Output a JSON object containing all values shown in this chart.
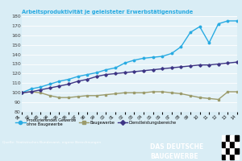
{
  "title": "Arbeitsproduktivität je geleisteter Erwerbstätigenstunde",
  "years": [
    1991,
    1992,
    1993,
    1994,
    1995,
    1996,
    1997,
    1998,
    1999,
    2000,
    2001,
    2002,
    2003,
    2004,
    2005,
    2006,
    2007,
    2008,
    2009,
    2010,
    2011,
    2012,
    2013,
    2014
  ],
  "produzierendes": [
    100,
    104,
    106,
    109,
    112,
    114,
    117,
    119,
    121,
    124,
    126,
    131,
    134,
    136,
    137,
    138,
    141,
    148,
    163,
    169,
    152,
    172,
    175,
    175
  ],
  "baugewerbe": [
    100,
    101,
    100,
    97,
    95,
    95,
    96,
    97,
    97,
    98,
    99,
    100,
    100,
    100,
    101,
    101,
    100,
    99,
    97,
    95,
    94,
    93,
    101,
    101
  ],
  "dienstleistung": [
    100,
    101,
    103,
    105,
    107,
    109,
    112,
    114,
    117,
    119,
    120,
    121,
    122,
    123,
    124,
    125,
    126,
    127,
    128,
    129,
    129,
    130,
    131,
    132
  ],
  "ylim": [
    80,
    180
  ],
  "yticks": [
    80,
    90,
    100,
    110,
    120,
    130,
    140,
    150,
    160,
    170,
    180
  ],
  "bg_color": "#d9edf5",
  "plot_bg": "#e4f2f8",
  "color_prod": "#29abe2",
  "color_bau": "#9b9b6b",
  "color_dl": "#3d3585",
  "footer_color": "#00afd8",
  "source_text": "Quelle: Statistisches Bundesamt, eigene Berechnungen",
  "company_line1": "DAS DEUTSCHE",
  "company_line2": "BAUGEWERBE",
  "legend1": "Produzierendes Gewerbe\nohne Baugewerbe",
  "legend2": "Baugewerbe",
  "legend3": "Dienstleistungsbereiche"
}
